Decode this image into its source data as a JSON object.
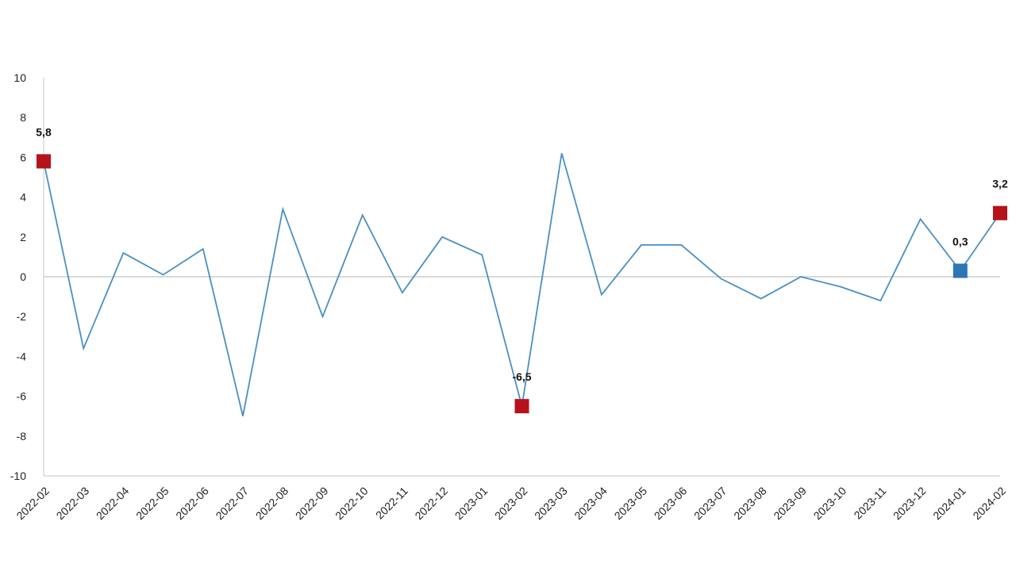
{
  "chart_data": {
    "type": "line",
    "title": "",
    "xlabel": "",
    "ylabel": "",
    "ylim": [
      -10,
      10
    ],
    "yticks": [
      10,
      8,
      6,
      4,
      2,
      0,
      -2,
      -4,
      -6,
      -8,
      -10
    ],
    "ytick_labels": [
      "10",
      "8",
      "6",
      "4",
      "2",
      "0",
      "-2",
      "-4",
      "-6",
      "-8",
      "-10"
    ],
    "grid": false,
    "categories": [
      "2022-02",
      "2022-03",
      "2022-04",
      "2022-05",
      "2022-06",
      "2022-07",
      "2022-08",
      "2022-09",
      "2022-10",
      "2022-11",
      "2022-12",
      "2023-01",
      "2023-02",
      "2023-03",
      "2023-04",
      "2023-05",
      "2023-06",
      "2023-07",
      "2023-08",
      "2023-09",
      "2023-10",
      "2023-11",
      "2023-12",
      "2024-01",
      "2024-02"
    ],
    "series": [
      {
        "values": [
          5.8,
          -3.6,
          1.2,
          0.1,
          1.4,
          -7.0,
          3.4,
          -2.0,
          3.1,
          -0.8,
          2.0,
          1.1,
          -6.5,
          6.2,
          -0.9,
          1.6,
          1.6,
          -0.1,
          -1.1,
          0.0,
          -0.5,
          -1.2,
          2.9,
          0.3,
          3.2
        ],
        "color": "#4a8fc4"
      }
    ],
    "highlights": [
      {
        "index": 0,
        "label": "5,8",
        "color": "#b5121b"
      },
      {
        "index": 12,
        "label": "-6,5",
        "color": "#b5121b"
      },
      {
        "index": 23,
        "label": "0,3",
        "color": "#2e75b6"
      },
      {
        "index": 24,
        "label": "3,2",
        "color": "#b5121b"
      }
    ],
    "zero_line_color": "#d9d9d9",
    "axis_color": "#d9d9d9"
  }
}
